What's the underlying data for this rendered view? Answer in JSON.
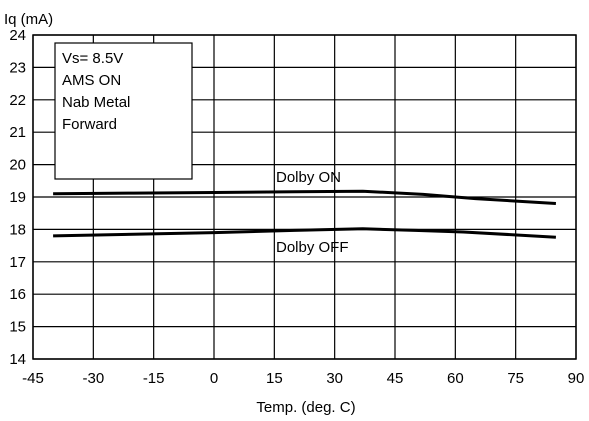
{
  "chart_data": {
    "type": "line",
    "title": "",
    "ylabel": "Iq (mA)",
    "xlabel": "Temp. (deg. C)",
    "xlim": [
      -45,
      90
    ],
    "ylim": [
      14,
      24
    ],
    "xticks": [
      -45,
      -30,
      -15,
      0,
      15,
      30,
      45,
      60,
      75,
      90
    ],
    "yticks": [
      14,
      15,
      16,
      17,
      18,
      19,
      20,
      21,
      22,
      23,
      24
    ],
    "grid": true,
    "conditions_box": [
      "Vs= 8.5V",
      "AMS ON",
      "Nab Metal",
      "Forward"
    ],
    "series": [
      {
        "name": "Dolby ON",
        "x": [
          -40,
          -20,
          0,
          20,
          37,
          52,
          65,
          85
        ],
        "y": [
          19.1,
          19.12,
          19.14,
          19.16,
          19.18,
          19.08,
          18.95,
          18.8
        ]
      },
      {
        "name": "Dolby OFF",
        "x": [
          -40,
          -20,
          0,
          20,
          37,
          50,
          62,
          85
        ],
        "y": [
          17.8,
          17.85,
          17.9,
          17.97,
          18.02,
          17.97,
          17.92,
          17.76
        ]
      }
    ],
    "colors": {
      "line": "#000000",
      "grid": "#000000",
      "background": "#ffffff"
    }
  }
}
